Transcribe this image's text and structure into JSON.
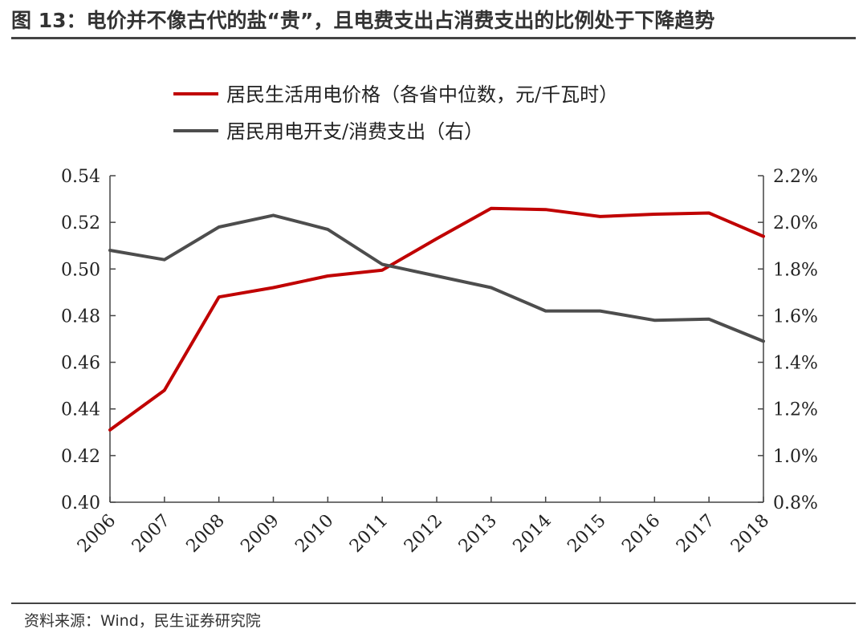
{
  "header": {
    "title": "图 13：电价并不像古代的盐“贵”，且电费支出占消费支出的比例处于下降趋势"
  },
  "footer": {
    "source": "资料来源：Wind，民生证券研究院"
  },
  "chart_data": {
    "type": "line",
    "title": "",
    "xlabel": "",
    "ylabel": "",
    "x": [
      "2006",
      "2007",
      "2008",
      "2009",
      "2010",
      "2011",
      "2012",
      "2013",
      "2014",
      "2015",
      "2016",
      "2017",
      "2018"
    ],
    "ylim": [
      0.4,
      0.54
    ],
    "y_ticks": [
      "0.40",
      "0.42",
      "0.44",
      "0.46",
      "0.48",
      "0.50",
      "0.52",
      "0.54"
    ],
    "y2lim": [
      0.8,
      2.2
    ],
    "y2_ticks": [
      "0.8%",
      "1.0%",
      "1.2%",
      "1.4%",
      "1.6%",
      "1.8%",
      "2.0%",
      "2.2%"
    ],
    "grid": false,
    "legend_position": "top-left",
    "series": [
      {
        "name": "居民生活用电价格（各省中位数，元/千瓦时）",
        "axis": "left",
        "color": "#c00000",
        "values": [
          0.431,
          0.448,
          0.488,
          0.492,
          0.497,
          0.4995,
          0.513,
          0.526,
          0.5255,
          0.5225,
          0.5235,
          0.524,
          0.514
        ]
      },
      {
        "name": "居民用电开支/消费支出（右）",
        "axis": "right",
        "color": "#4d4d4d",
        "values": [
          1.88,
          1.84,
          1.98,
          2.03,
          1.97,
          1.82,
          1.77,
          1.72,
          1.62,
          1.62,
          1.58,
          1.585,
          1.49
        ]
      }
    ]
  }
}
